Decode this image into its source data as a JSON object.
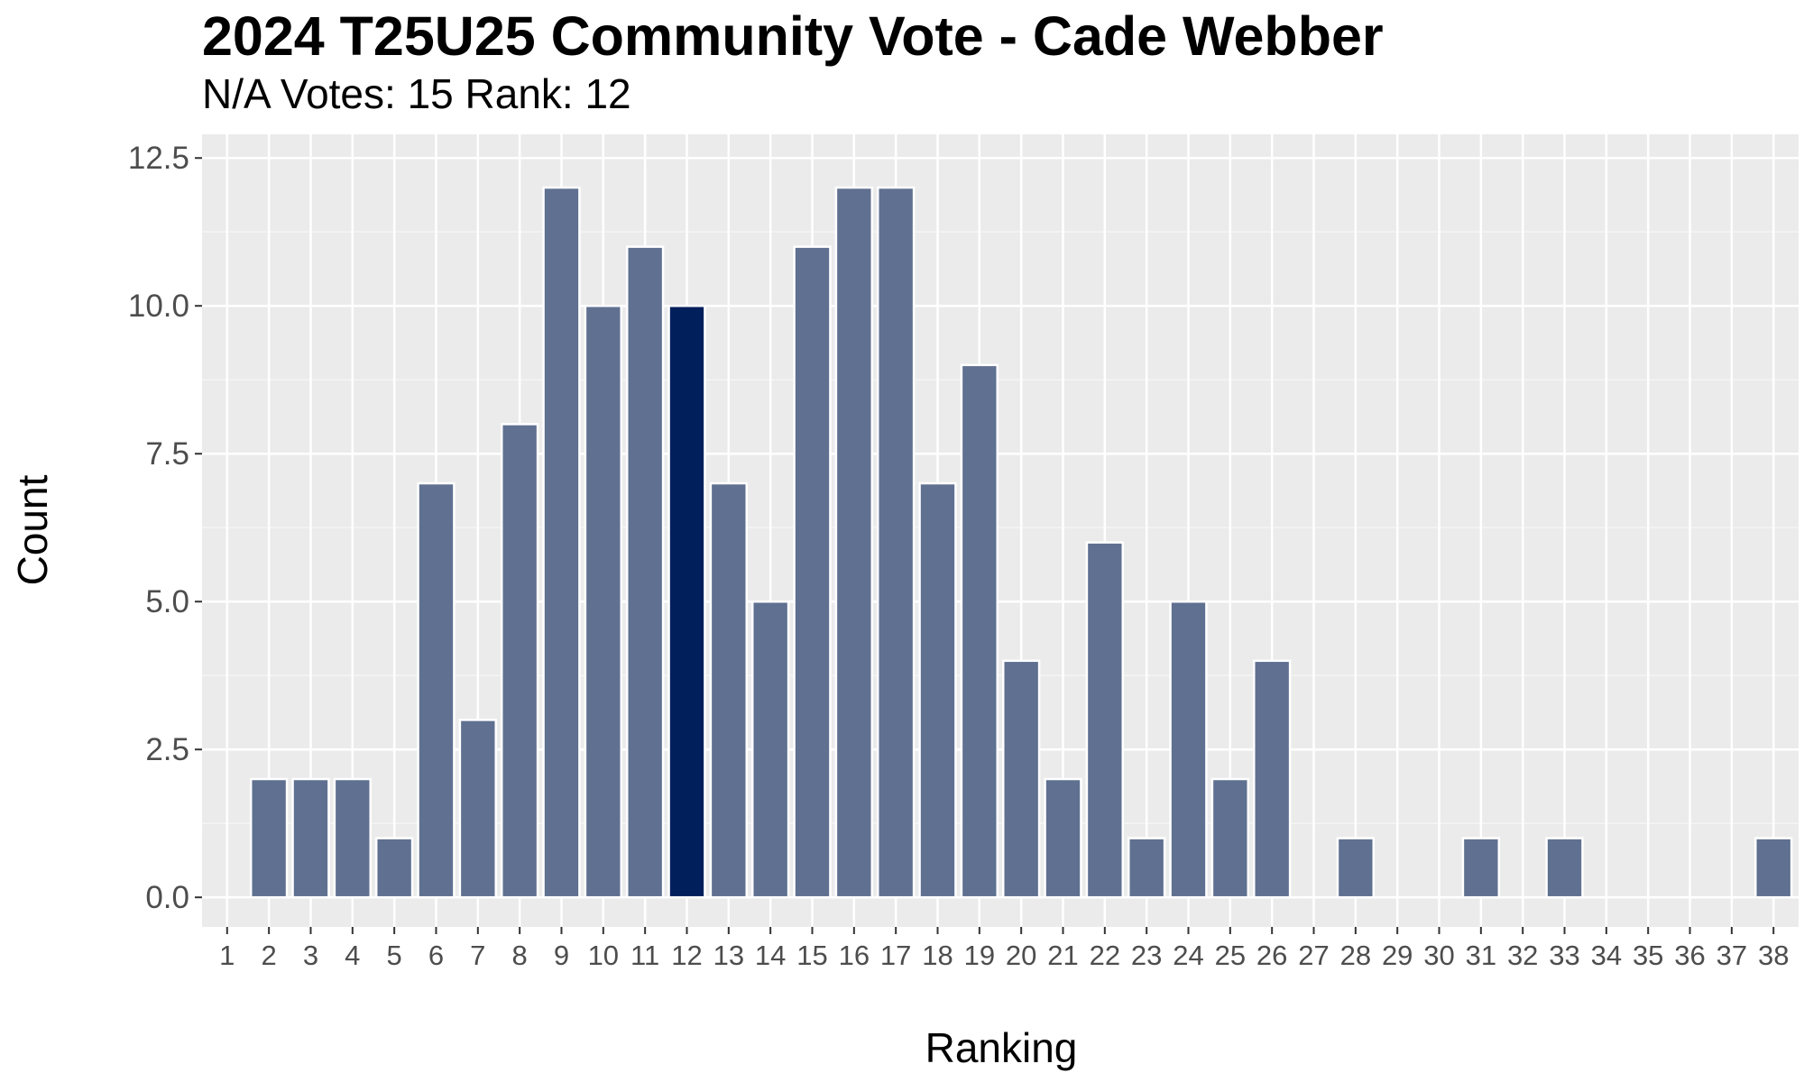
{
  "chart_data": {
    "type": "bar",
    "title": "2024 T25U25 Community Vote - Cade Webber",
    "subtitle": "N/A Votes: 15  Rank: 12",
    "xlabel": "Ranking",
    "ylabel": "Count",
    "ylim": [
      -0.5,
      12.9
    ],
    "yticks": [
      "0.0",
      "2.5",
      "5.0",
      "7.5",
      "10.0",
      "12.5"
    ],
    "ytick_values": [
      0,
      2.5,
      5,
      7.5,
      10,
      12.5
    ],
    "categories": [
      "1",
      "2",
      "3",
      "4",
      "5",
      "6",
      "7",
      "8",
      "9",
      "10",
      "11",
      "12",
      "13",
      "14",
      "15",
      "16",
      "17",
      "18",
      "19",
      "20",
      "21",
      "22",
      "23",
      "24",
      "25",
      "26",
      "27",
      "28",
      "29",
      "30",
      "31",
      "32",
      "33",
      "34",
      "35",
      "36",
      "37",
      "38"
    ],
    "values": [
      0,
      2,
      2,
      2,
      1,
      7,
      3,
      8,
      12,
      10,
      11,
      10,
      7,
      5,
      11,
      12,
      12,
      7,
      9,
      4,
      2,
      6,
      1,
      5,
      2,
      4,
      0,
      1,
      0,
      0,
      1,
      0,
      1,
      0,
      0,
      0,
      0,
      1
    ],
    "highlight_category": "12",
    "grid": true,
    "colors": {
      "bar": "#5f7091",
      "highlight": "#001f5b",
      "panel": "#ebebeb",
      "grid_major": "#ffffff",
      "grid_minor": "#f4f4f4"
    }
  }
}
